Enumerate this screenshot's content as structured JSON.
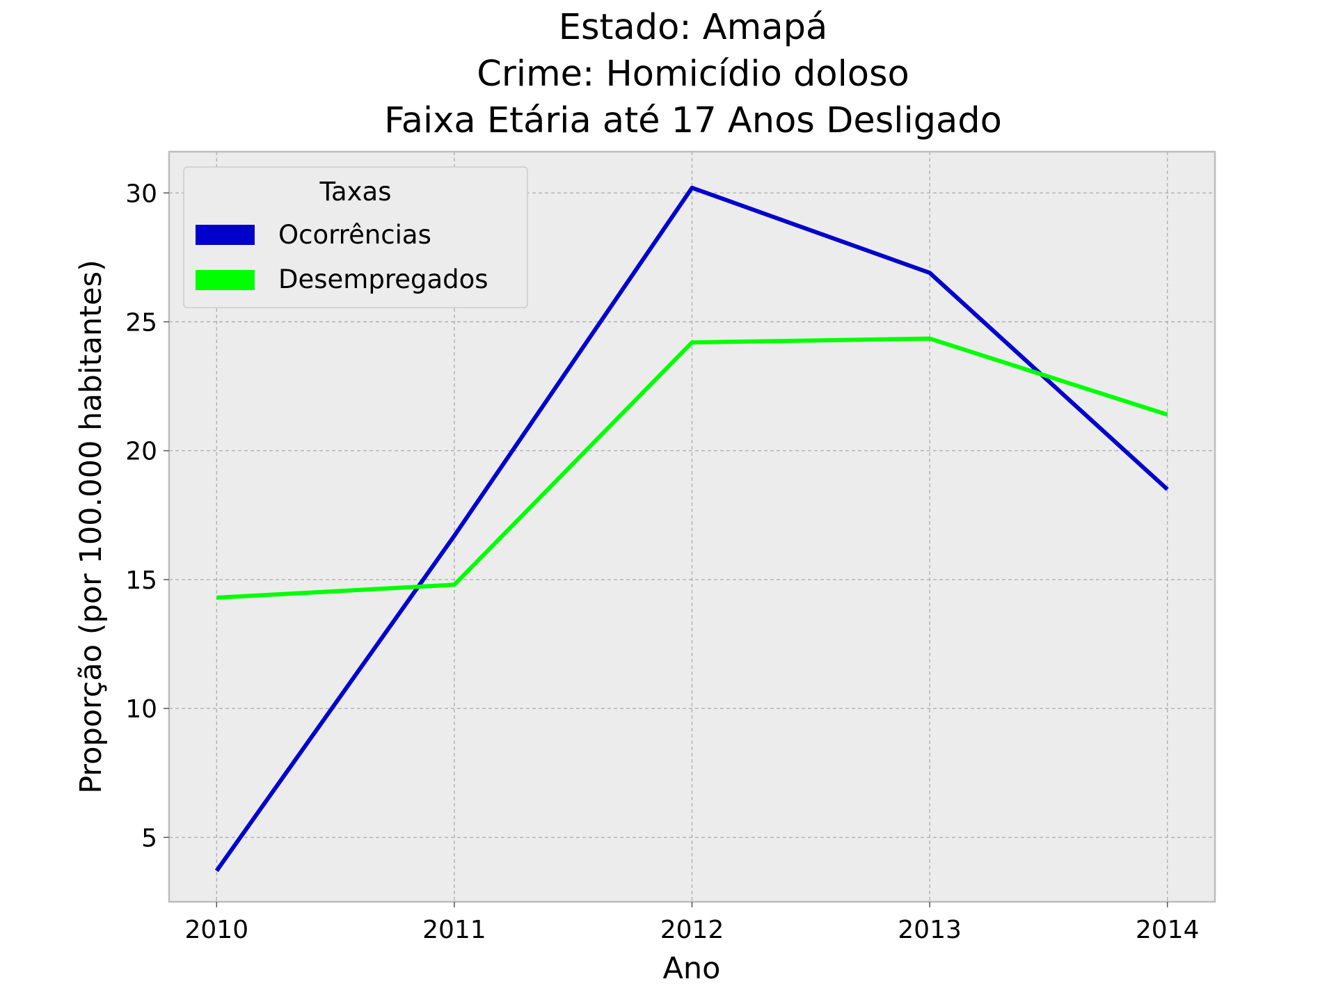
{
  "chart_data": {
    "type": "line",
    "title_lines": [
      "Estado: Amapá",
      "Crime: Homicídio doloso",
      "Faixa Etária até 17 Anos   Desligado"
    ],
    "xlabel": "Ano",
    "ylabel": "Proporção (por 100.000 habitantes)",
    "categories": [
      "2010",
      "2011",
      "2012",
      "2013",
      "2014"
    ],
    "y_ticks": [
      5,
      10,
      15,
      20,
      25,
      30
    ],
    "ylim": [
      2.5,
      31.6
    ],
    "xlim": [
      -0.2,
      4.2
    ],
    "grid": true,
    "legend": {
      "title": "Taxas",
      "position": "top-left"
    },
    "series": [
      {
        "name": "Ocorrências",
        "color": "#0000cc",
        "values": [
          3.7,
          16.7,
          30.2,
          26.9,
          18.5
        ]
      },
      {
        "name": "Desempregados",
        "color": "#00ff00",
        "values": [
          14.3,
          14.8,
          24.2,
          24.35,
          21.4
        ]
      }
    ]
  },
  "colors": {
    "plot_background": "#ececec",
    "axes_edge": "#bcbcbc"
  }
}
